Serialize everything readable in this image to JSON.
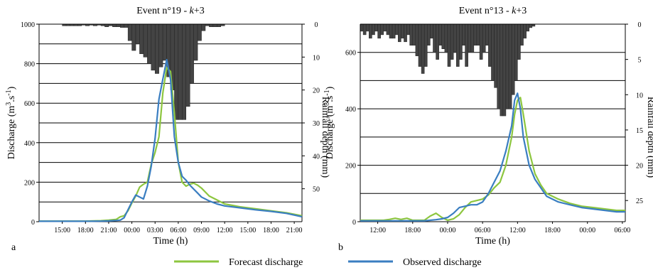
{
  "chart_data": [
    {
      "type": "line",
      "panel_label": "a",
      "title_prefix": "Event n°19 - ",
      "title_k": "k",
      "title_suffix": "+3",
      "xlabel": "Time (h)",
      "ylabel_main": "Discharge (m",
      "ylabel_sup": "3",
      "ylabel_tail": ".s",
      "ylabel_sup2": "-1",
      "ylabel_end": ")",
      "y2label": "Rainfall depth (mm)",
      "ylim": [
        0,
        1000
      ],
      "y_ticks": [
        "0",
        "200",
        "400",
        "600",
        "800",
        "1000"
      ],
      "y2lim": [
        0,
        60
      ],
      "y2_ticks": [
        "0",
        "10",
        "20",
        "30",
        "40",
        "50"
      ],
      "x_ticks": [
        "15:00",
        "18:00",
        "21:00",
        "00:00",
        "03:00",
        "06:00",
        "09:00",
        "12:00",
        "15:00",
        "18:00",
        "21:00"
      ],
      "x_tick_hours": [
        3,
        6,
        9,
        12,
        15,
        18,
        21,
        24,
        27,
        30,
        33
      ],
      "xlim_hours": [
        0,
        34
      ],
      "grid": true,
      "series": [
        {
          "name": "Forecast discharge",
          "color": "#8dc63f",
          "x": [
            0,
            2,
            4,
            6,
            8,
            9,
            10,
            10.5,
            11,
            11.5,
            12,
            12.5,
            13,
            13.5,
            14,
            14.5,
            15,
            15.5,
            16,
            16.5,
            17,
            17.5,
            18,
            18.5,
            19,
            19.5,
            20,
            20.5,
            21,
            22,
            23,
            24,
            26,
            28,
            30,
            32,
            34
          ],
          "y": [
            3,
            3,
            3,
            3,
            5,
            8,
            12,
            25,
            30,
            55,
            95,
            130,
            175,
            190,
            200,
            290,
            350,
            430,
            650,
            780,
            760,
            550,
            300,
            200,
            180,
            190,
            195,
            185,
            170,
            130,
            110,
            90,
            75,
            65,
            55,
            45,
            30
          ]
        },
        {
          "name": "Observed discharge",
          "color": "#3a7ec1",
          "x": [
            0,
            2,
            4,
            6,
            8,
            9,
            10,
            10.5,
            11,
            11.5,
            12,
            12.5,
            13,
            13.5,
            14,
            14.5,
            15,
            15.5,
            16,
            16.5,
            17,
            17.5,
            18,
            18.5,
            19,
            19.5,
            20,
            20.5,
            21,
            22,
            23,
            24,
            26,
            28,
            30,
            32,
            34
          ],
          "y": [
            2,
            2,
            2,
            2,
            3,
            4,
            6,
            8,
            20,
            60,
            100,
            135,
            125,
            115,
            180,
            280,
            420,
            620,
            720,
            820,
            720,
            430,
            300,
            230,
            210,
            185,
            165,
            145,
            125,
            105,
            90,
            80,
            70,
            60,
            52,
            42,
            25
          ]
        }
      ],
      "rainfall": {
        "start_hour": 3,
        "step_hours": 0.5,
        "values": [
          0.5,
          0.5,
          0.5,
          0.5,
          0.5,
          0.3,
          0.5,
          0.3,
          0.5,
          0.3,
          0.5,
          0.8,
          0.5,
          0.8,
          0.8,
          1,
          1,
          5,
          8,
          6,
          9,
          10,
          12,
          14,
          15,
          13,
          11,
          16,
          20,
          29,
          29,
          29,
          25,
          18,
          11,
          5,
          2,
          0.5,
          0.8,
          0.8,
          0.8,
          0.5
        ]
      }
    },
    {
      "type": "line",
      "panel_label": "b",
      "title_prefix": "Event n°13 - ",
      "title_k": "k",
      "title_suffix": "+3",
      "xlabel": "Time (h)",
      "ylabel_main": "Discharge (m",
      "ylabel_sup": "3",
      "ylabel_tail": ".s",
      "ylabel_sup2": "-1",
      "ylabel_end": ")",
      "y2label": "Rainfall depth (mm)",
      "ylim": [
        0,
        700
      ],
      "y_ticks": [
        "0",
        "200",
        "400",
        "600"
      ],
      "y_tick_values": [
        0,
        200,
        400,
        600
      ],
      "y2lim": [
        0,
        28
      ],
      "y2_ticks": [
        "0",
        "5",
        "10",
        "15",
        "20",
        "25"
      ],
      "y2_tick_values": [
        0,
        5,
        10,
        15,
        20,
        25
      ],
      "x_ticks": [
        "12:00",
        "18:00",
        "00:00",
        "06:00",
        "12:00",
        "18:00",
        "00:00",
        "06:00"
      ],
      "x_tick_hours": [
        3,
        9,
        15,
        21,
        27,
        33,
        39,
        45
      ],
      "xlim_hours": [
        0,
        45.5
      ],
      "grid": true,
      "series": [
        {
          "name": "Forecast discharge",
          "color": "#8dc63f",
          "x": [
            0,
            2,
            4,
            5,
            6,
            7,
            8,
            9,
            10,
            11,
            12,
            13,
            14,
            15,
            16,
            17,
            18,
            19,
            20,
            21,
            22,
            23,
            24,
            25,
            26,
            26.5,
            27,
            27.5,
            28,
            29,
            30,
            31,
            32,
            34,
            36,
            38,
            40,
            42,
            44,
            45.5
          ],
          "y": [
            5,
            5,
            5,
            8,
            12,
            8,
            12,
            5,
            5,
            5,
            20,
            30,
            15,
            5,
            10,
            25,
            50,
            70,
            75,
            80,
            95,
            120,
            140,
            200,
            300,
            380,
            430,
            440,
            380,
            250,
            170,
            130,
            100,
            80,
            65,
            55,
            50,
            45,
            40,
            40
          ]
        },
        {
          "name": "Observed discharge",
          "color": "#3a7ec1",
          "x": [
            0,
            2,
            4,
            5,
            6,
            7,
            8,
            9,
            10,
            11,
            12,
            13,
            14,
            15,
            16,
            17,
            18,
            19,
            20,
            21,
            22,
            23,
            24,
            25,
            26,
            26.5,
            27,
            27.5,
            28,
            29,
            30,
            31,
            32,
            34,
            36,
            38,
            40,
            42,
            44,
            45.5
          ],
          "y": [
            3,
            3,
            3,
            3,
            3,
            3,
            3,
            3,
            3,
            3,
            5,
            7,
            10,
            15,
            30,
            50,
            55,
            60,
            60,
            70,
            100,
            140,
            180,
            250,
            340,
            430,
            455,
            400,
            300,
            200,
            150,
            120,
            90,
            70,
            60,
            50,
            45,
            40,
            35,
            35
          ]
        }
      ],
      "rainfall": {
        "start_hour": 0,
        "step_hours": 0.5,
        "values": [
          1,
          1.5,
          1,
          2,
          1.5,
          1,
          2,
          1.5,
          1,
          1.5,
          2,
          2,
          1.5,
          2.5,
          2,
          2.5,
          1.5,
          3,
          3,
          4.5,
          6,
          7,
          6,
          3,
          2,
          4,
          5,
          3,
          3.5,
          4,
          6,
          5,
          4,
          6,
          5,
          3,
          6,
          4,
          4,
          3,
          3,
          5,
          4,
          3,
          6,
          8,
          9,
          12,
          13,
          13,
          12,
          12,
          10,
          8,
          5,
          3,
          2,
          1,
          0.5,
          0.3
        ]
      }
    }
  ],
  "legend": [
    {
      "label": "Forecast discharge",
      "color": "#8dc63f"
    },
    {
      "label": "Observed discharge",
      "color": "#3a7ec1"
    }
  ]
}
